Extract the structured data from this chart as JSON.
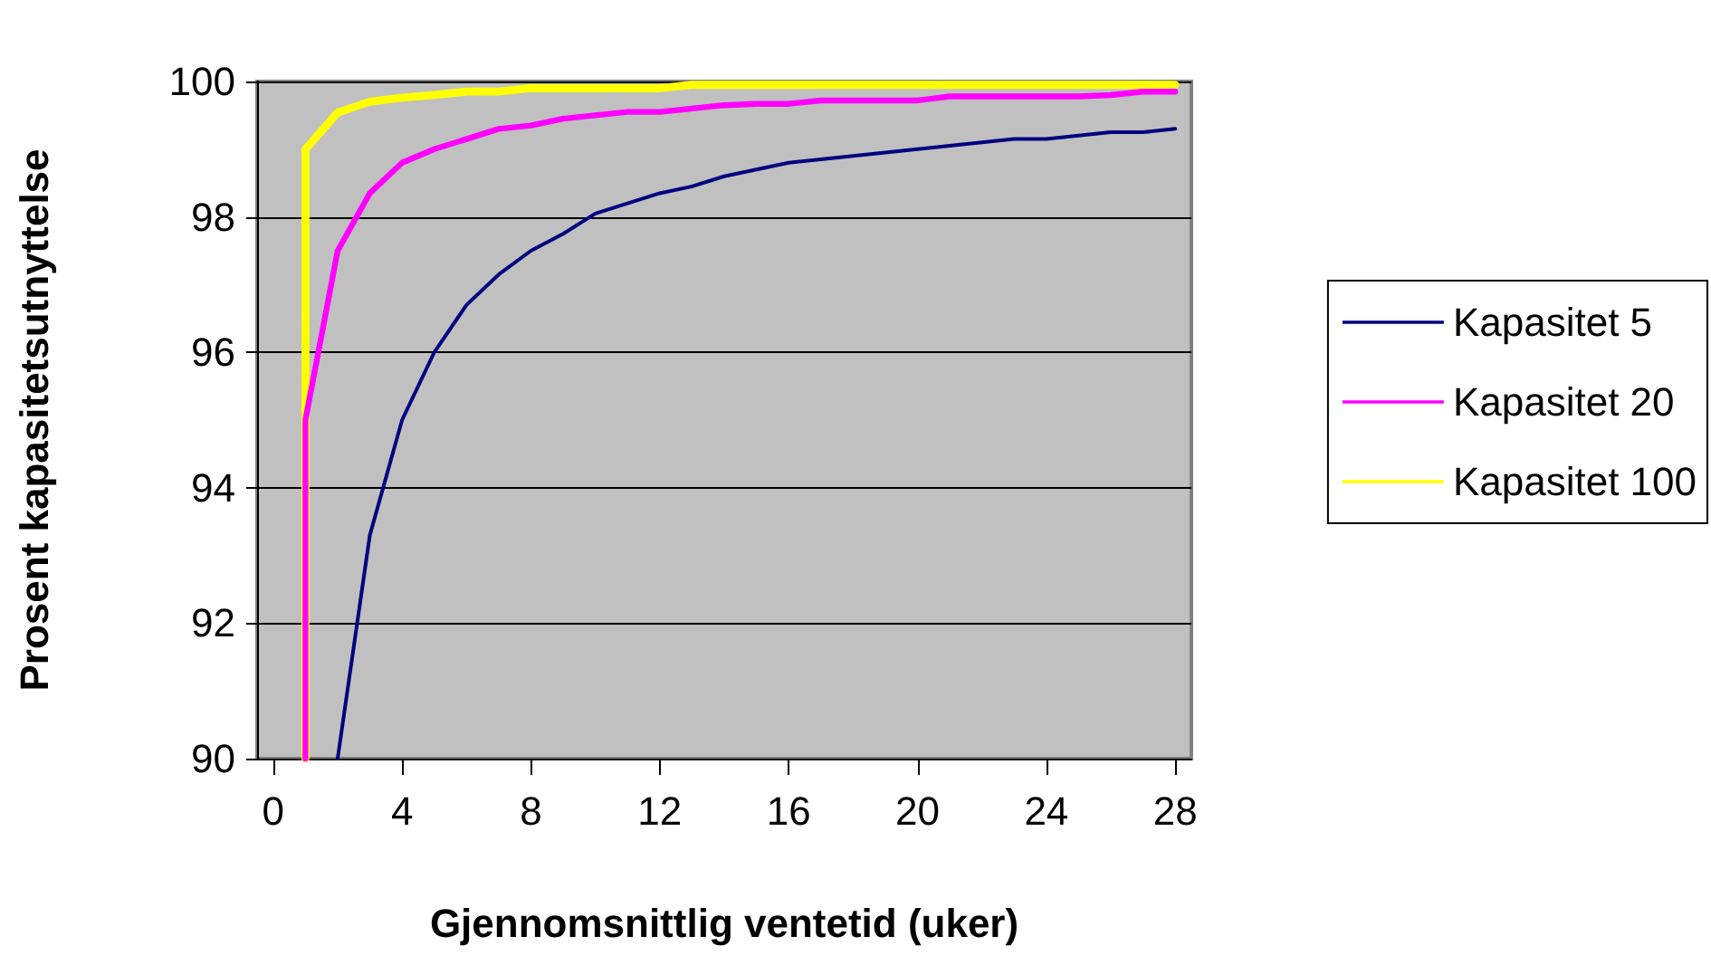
{
  "chart_data": {
    "type": "line",
    "xlabel": "Gjennomsnittlig ventetid (uker)",
    "ylabel": "Prosent kapasitetsutnyttelse",
    "xlim": [
      -0.5,
      28.5
    ],
    "xticks": [
      0,
      4,
      8,
      12,
      16,
      20,
      24,
      28
    ],
    "ylim": [
      90,
      100
    ],
    "yticks": [
      90,
      92,
      94,
      96,
      98,
      100
    ],
    "grid": "y",
    "legend": "right",
    "marker": "none",
    "series": [
      {
        "name": "Kapasitet 5",
        "color": "#000080",
        "x": [
          2,
          3,
          4,
          5,
          6,
          7,
          8,
          9,
          10,
          11,
          12,
          13,
          14,
          15,
          16,
          17,
          18,
          19,
          20,
          21,
          22,
          23,
          24,
          25,
          26,
          27,
          28
        ],
        "values": [
          90,
          93.3,
          95.0,
          96.0,
          96.7,
          97.15,
          97.5,
          97.75,
          98.05,
          98.2,
          98.35,
          98.45,
          98.6,
          98.7,
          98.8,
          98.85,
          98.9,
          98.95,
          99.0,
          99.05,
          99.1,
          99.15,
          99.15,
          99.2,
          99.25,
          99.25,
          99.3
        ]
      },
      {
        "name": "Kapasitet 20",
        "color": "#ff00ff",
        "x": [
          1,
          1,
          2,
          3,
          4,
          5,
          6,
          7,
          8,
          9,
          10,
          11,
          12,
          13,
          14,
          15,
          16,
          17,
          18,
          19,
          20,
          21,
          22,
          23,
          24,
          25,
          26,
          27,
          28
        ],
        "values": [
          90,
          95,
          97.5,
          98.35,
          98.8,
          99.0,
          99.15,
          99.3,
          99.35,
          99.45,
          99.5,
          99.55,
          99.55,
          99.6,
          99.65,
          99.67,
          99.67,
          99.72,
          99.72,
          99.72,
          99.72,
          99.78,
          99.78,
          99.78,
          99.78,
          99.78,
          99.8,
          99.85,
          99.85
        ]
      },
      {
        "name": "Kapasitet 100",
        "color": "#ffff00",
        "x": [
          1,
          1,
          2,
          3,
          4,
          5,
          6,
          7,
          8,
          9,
          10,
          11,
          12,
          13,
          14,
          15,
          16,
          17,
          18,
          19,
          20,
          21,
          22,
          23,
          24,
          25,
          26,
          27,
          28
        ],
        "values": [
          90,
          99,
          99.54,
          99.7,
          99.76,
          99.8,
          99.85,
          99.85,
          99.9,
          99.9,
          99.9,
          99.9,
          99.9,
          99.95,
          99.95,
          99.95,
          99.95,
          99.95,
          99.95,
          99.95,
          99.95,
          99.95,
          99.95,
          99.95,
          99.95,
          99.95,
          99.95,
          99.95,
          99.95
        ]
      }
    ]
  }
}
